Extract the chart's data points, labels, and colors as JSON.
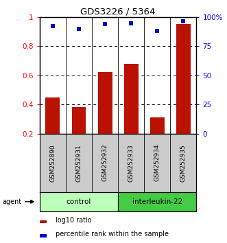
{
  "title": "GDS3226 / 5364",
  "categories": [
    "GSM252890",
    "GSM252931",
    "GSM252932",
    "GSM252933",
    "GSM252934",
    "GSM252935"
  ],
  "bar_values": [
    0.45,
    0.38,
    0.62,
    0.68,
    0.31,
    0.95
  ],
  "bar_color": "#bb1100",
  "scatter_values": [
    0.94,
    0.92,
    0.95,
    0.955,
    0.905,
    0.972
  ],
  "scatter_color": "#0000cc",
  "ylim_left": [
    0.2,
    1.0
  ],
  "yticks_left": [
    0.2,
    0.4,
    0.6,
    0.8,
    1.0
  ],
  "ytick_labels_left": [
    "0.2",
    "0.4",
    "0.6",
    "0.8",
    "1"
  ],
  "yticks_right_vals": [
    0,
    25,
    50,
    75,
    100
  ],
  "ytick_labels_right": [
    "0",
    "25",
    "50",
    "75",
    "100%"
  ],
  "grid_yticks": [
    0.4,
    0.6,
    0.8
  ],
  "groups": [
    {
      "label": "control",
      "start": 0,
      "end": 3,
      "color": "#bbffbb"
    },
    {
      "label": "interleukin-22",
      "start": 3,
      "end": 6,
      "color": "#44cc44"
    }
  ],
  "agent_label": "agent",
  "legend_items": [
    {
      "color": "#bb1100",
      "label": "log10 ratio"
    },
    {
      "color": "#0000cc",
      "label": "percentile rank within the sample"
    }
  ],
  "bar_bottom": 0.2,
  "xlabels_facecolor": "#cccccc"
}
